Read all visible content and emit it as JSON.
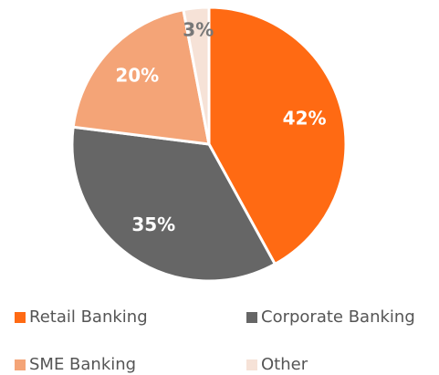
{
  "chart_data": {
    "type": "pie",
    "categories": [
      "Retail Banking",
      "Corporate Banking",
      "SME Banking",
      "Other"
    ],
    "values": [
      42,
      35,
      20,
      3
    ],
    "value_labels": [
      "42%",
      "35%",
      "20%",
      "3%"
    ],
    "colors": [
      "#ff6a13",
      "#666666",
      "#f4a477",
      "#f6e2d7"
    ],
    "legend": "bottom"
  }
}
